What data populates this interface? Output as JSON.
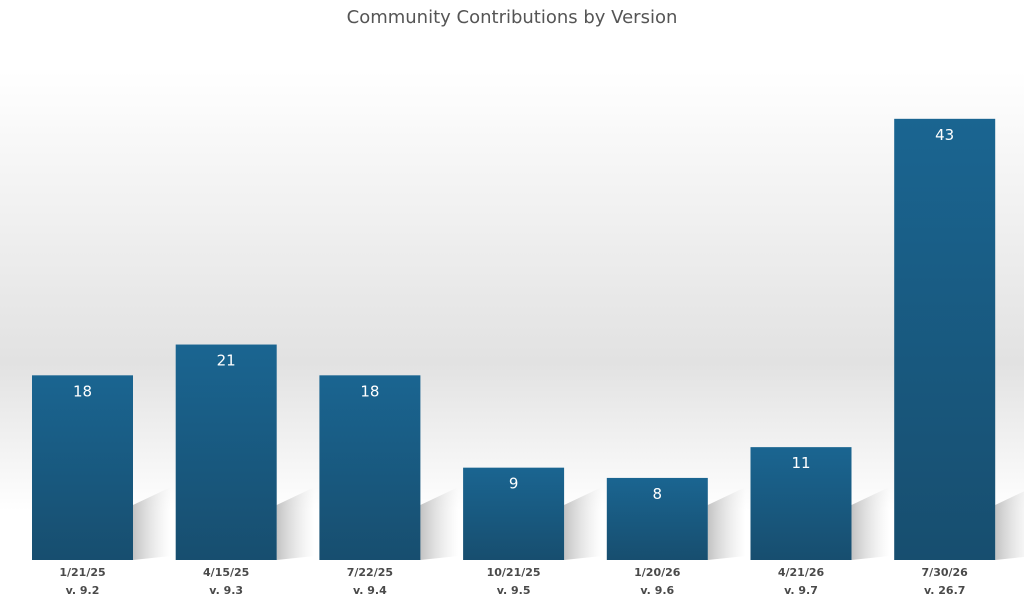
{
  "chart_data": {
    "type": "bar",
    "title": "Community Contributions by Version",
    "xlabel": "",
    "ylabel": "",
    "ylim": [
      0,
      45
    ],
    "grid": false,
    "legend": "none",
    "categories": [
      "1/21/25",
      "4/15/25",
      "7/22/25",
      "10/21/25",
      "1/20/26",
      "4/21/26",
      "7/30/26"
    ],
    "versions": [
      "v. 9.2",
      "v. 9.3",
      "v. 9.4",
      "v. 9.5",
      "v. 9.6",
      "v. 9.7",
      "v. 26.7"
    ],
    "values": [
      18,
      21,
      18,
      9,
      8,
      11,
      43
    ],
    "colors": {
      "bar_top": "#1a6591",
      "bar_bottom": "#174e6f",
      "label": "#ffffff",
      "tick": "#4a4a4a"
    }
  }
}
